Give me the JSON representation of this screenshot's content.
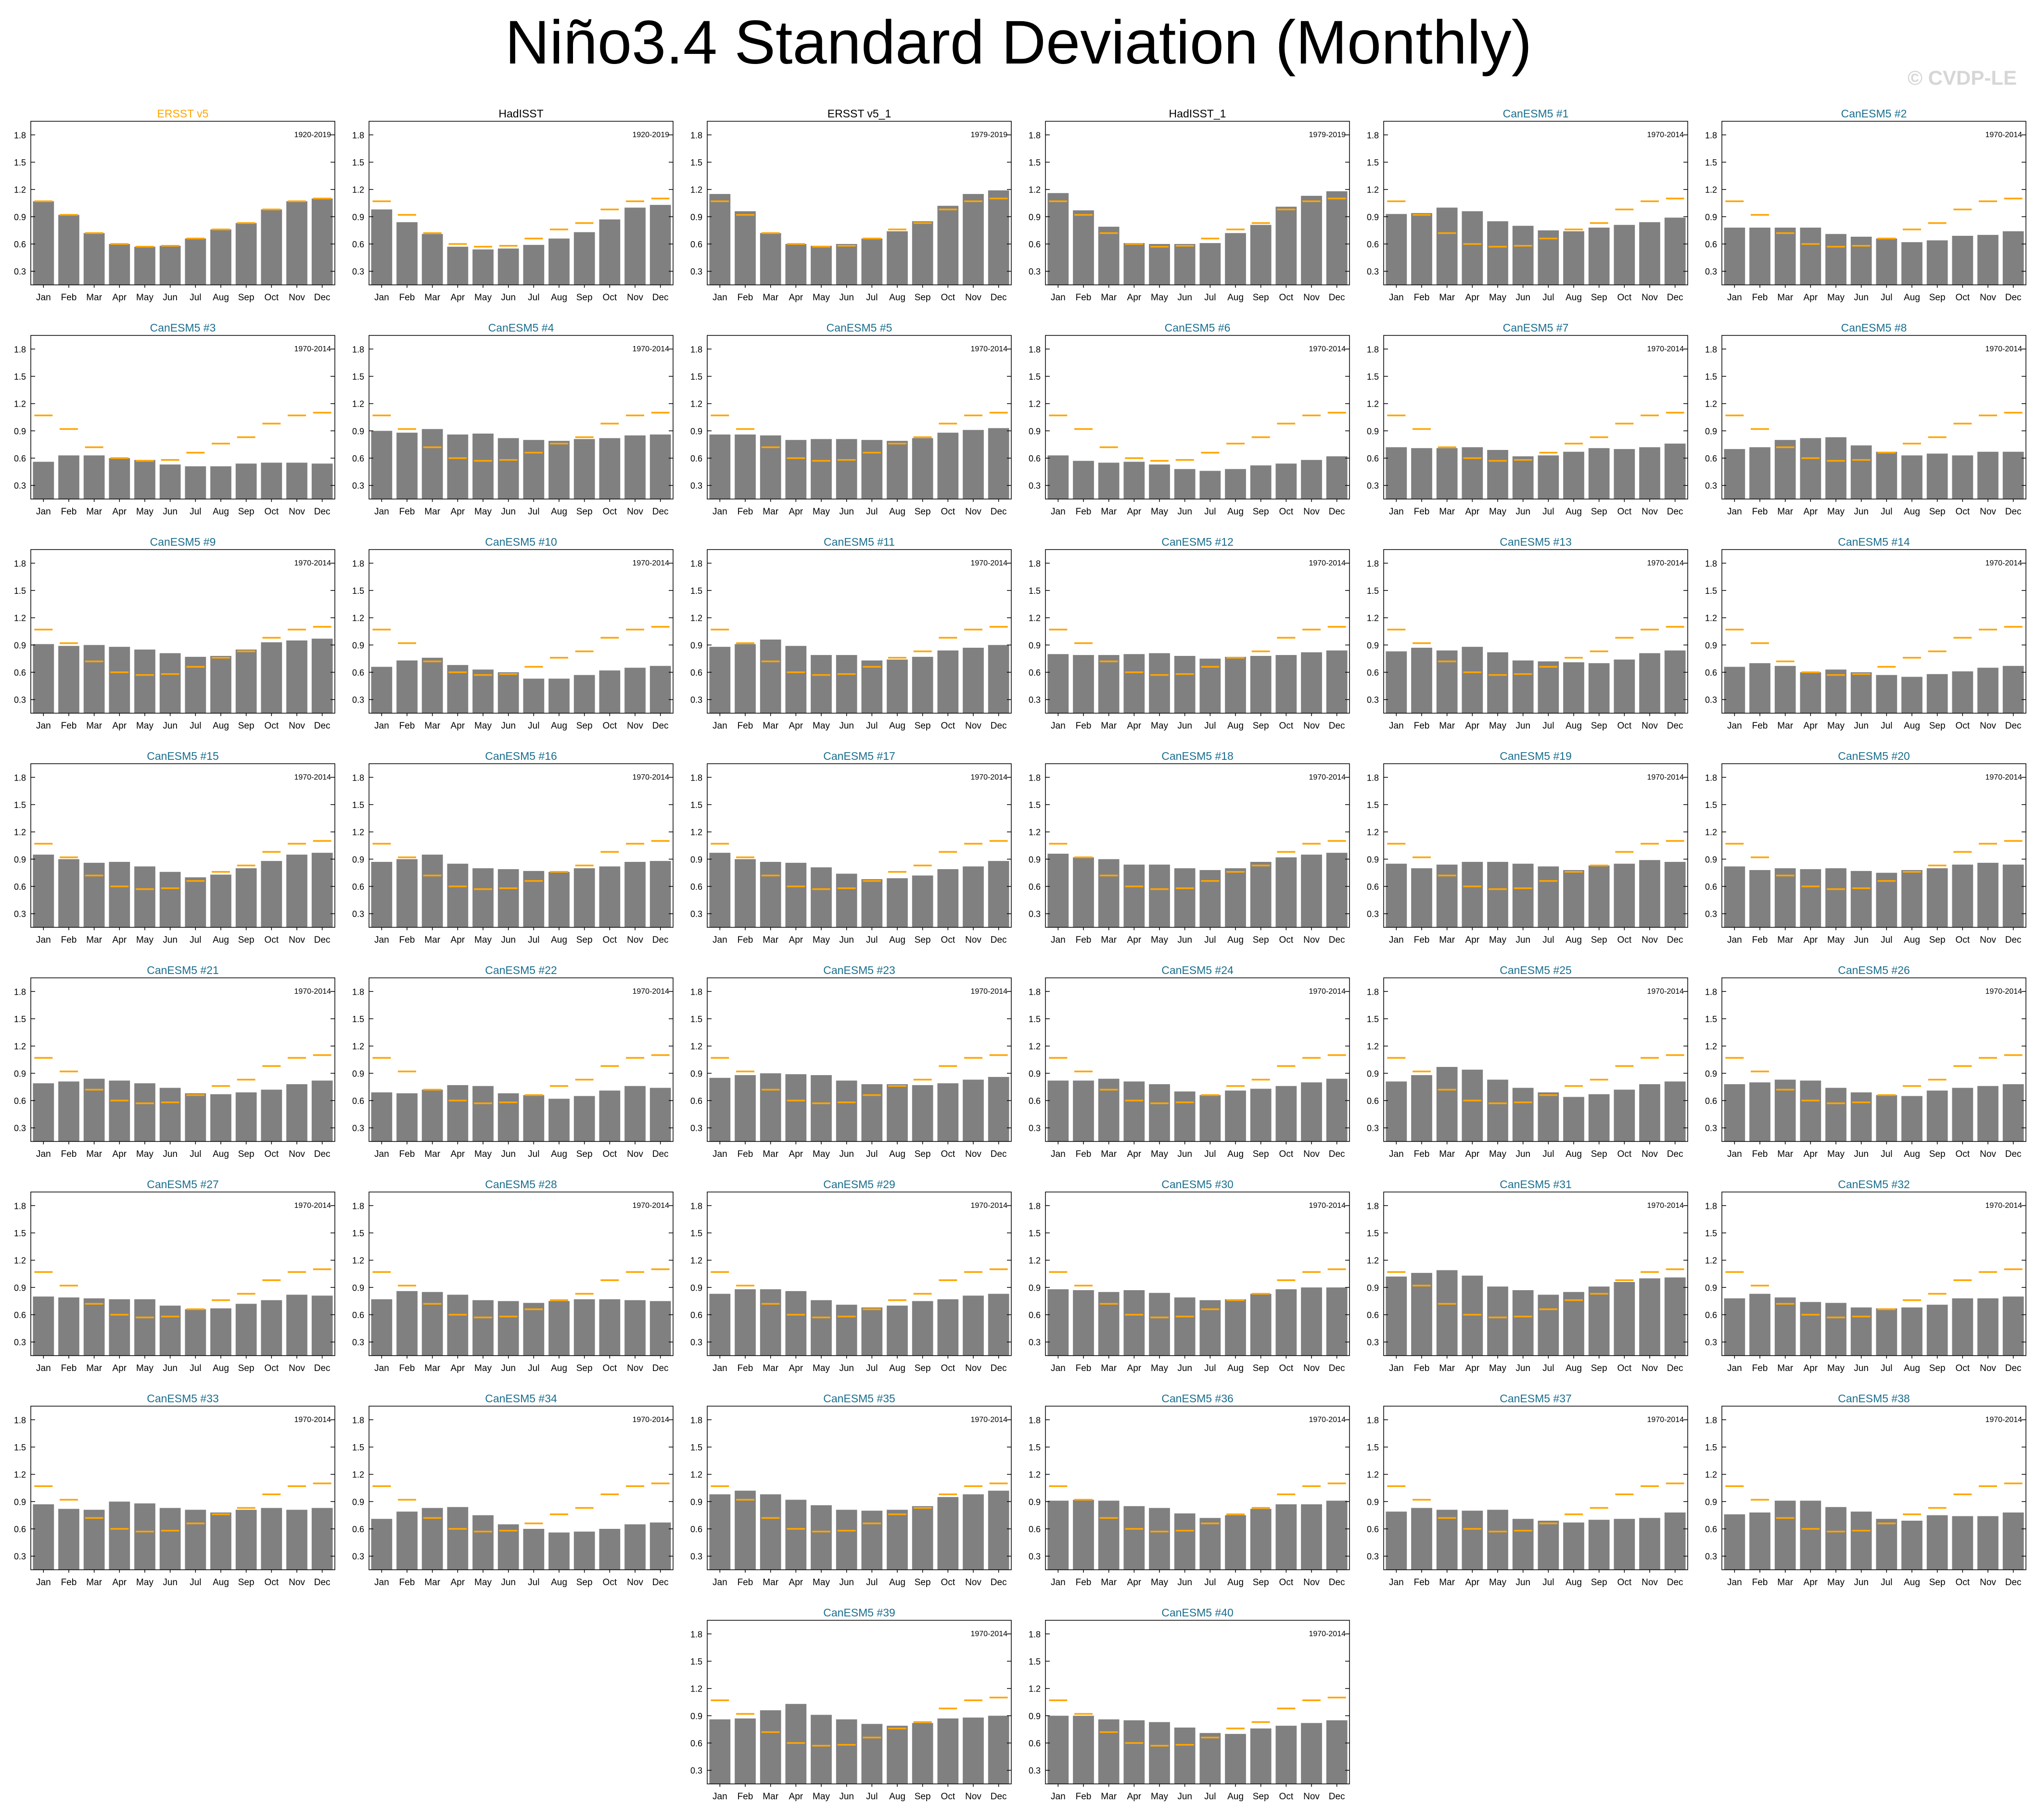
{
  "title": "Niño3.4 Standard Deviation (Monthly)",
  "watermark": "© CVDP-LE",
  "colors": {
    "bar": "#808080",
    "obs_line": "#FFA500",
    "obs_title": "#FFA500",
    "model_title": "#1a6e8e",
    "frame": "#000000"
  },
  "chart_data": {
    "type": "bar",
    "months": [
      "Jan",
      "Feb",
      "Mar",
      "Apr",
      "May",
      "Jun",
      "Jul",
      "Aug",
      "Sep",
      "Oct",
      "Nov",
      "Dec"
    ],
    "ylim": [
      0.15,
      1.95
    ],
    "yticks": [
      "0.3",
      "0.6",
      "0.9",
      "1.2",
      "1.5",
      "1.8"
    ],
    "obs_reference": [
      1.07,
      0.92,
      0.72,
      0.6,
      0.57,
      0.58,
      0.66,
      0.76,
      0.83,
      0.98,
      1.07,
      1.1
    ],
    "panels": [
      {
        "title": "ERSST v5",
        "kind": "obs-ref",
        "period": "1920-2019",
        "values": [
          1.07,
          0.92,
          0.72,
          0.6,
          0.57,
          0.58,
          0.66,
          0.76,
          0.83,
          0.98,
          1.07,
          1.1
        ]
      },
      {
        "title": "HadISST",
        "kind": "obs",
        "period": "1920-2019",
        "values": [
          0.98,
          0.84,
          0.71,
          0.57,
          0.54,
          0.55,
          0.59,
          0.66,
          0.73,
          0.87,
          1.0,
          1.03
        ]
      },
      {
        "title": "ERSST v5_1",
        "kind": "obs",
        "period": "1979-2019",
        "values": [
          1.15,
          0.96,
          0.72,
          0.6,
          0.58,
          0.6,
          0.66,
          0.74,
          0.85,
          1.02,
          1.15,
          1.19
        ]
      },
      {
        "title": "HadISST_1",
        "kind": "obs",
        "period": "1979-2019",
        "values": [
          1.16,
          0.97,
          0.79,
          0.61,
          0.6,
          0.6,
          0.61,
          0.72,
          0.81,
          1.01,
          1.13,
          1.18
        ]
      },
      {
        "title": "CanESM5 #1",
        "kind": "model",
        "period": "1970-2014",
        "values": [
          0.93,
          0.94,
          1.0,
          0.96,
          0.85,
          0.8,
          0.75,
          0.74,
          0.78,
          0.81,
          0.84,
          0.89
        ]
      },
      {
        "title": "CanESM5 #2",
        "kind": "model",
        "period": "1970-2014",
        "values": [
          0.78,
          0.78,
          0.78,
          0.78,
          0.71,
          0.68,
          0.66,
          0.62,
          0.64,
          0.69,
          0.7,
          0.74
        ]
      },
      {
        "title": "CanESM5 #3",
        "kind": "model",
        "period": "1970-2014",
        "values": [
          0.56,
          0.63,
          0.63,
          0.6,
          0.58,
          0.53,
          0.51,
          0.51,
          0.54,
          0.55,
          0.55,
          0.54
        ]
      },
      {
        "title": "CanESM5 #4",
        "kind": "model",
        "period": "1970-2014",
        "values": [
          0.9,
          0.88,
          0.92,
          0.86,
          0.87,
          0.82,
          0.8,
          0.79,
          0.81,
          0.82,
          0.85,
          0.86
        ]
      },
      {
        "title": "CanESM5 #5",
        "kind": "model",
        "period": "1970-2014",
        "values": [
          0.86,
          0.86,
          0.85,
          0.8,
          0.81,
          0.81,
          0.8,
          0.79,
          0.82,
          0.88,
          0.91,
          0.93
        ]
      },
      {
        "title": "CanESM5 #6",
        "kind": "model",
        "period": "1970-2014",
        "values": [
          0.63,
          0.57,
          0.55,
          0.56,
          0.53,
          0.48,
          0.46,
          0.48,
          0.52,
          0.54,
          0.58,
          0.62
        ]
      },
      {
        "title": "CanESM5 #7",
        "kind": "model",
        "period": "1970-2014",
        "values": [
          0.72,
          0.71,
          0.71,
          0.72,
          0.69,
          0.62,
          0.63,
          0.67,
          0.71,
          0.7,
          0.72,
          0.76
        ]
      },
      {
        "title": "CanESM5 #8",
        "kind": "model",
        "period": "1970-2014",
        "values": [
          0.7,
          0.72,
          0.8,
          0.82,
          0.83,
          0.74,
          0.67,
          0.63,
          0.65,
          0.63,
          0.67,
          0.67
        ]
      },
      {
        "title": "CanESM5 #9",
        "kind": "model",
        "period": "1970-2014",
        "values": [
          0.91,
          0.89,
          0.9,
          0.88,
          0.85,
          0.81,
          0.77,
          0.78,
          0.85,
          0.93,
          0.95,
          0.97
        ]
      },
      {
        "title": "CanESM5 #10",
        "kind": "model",
        "period": "1970-2014",
        "values": [
          0.66,
          0.73,
          0.76,
          0.68,
          0.63,
          0.6,
          0.53,
          0.53,
          0.57,
          0.62,
          0.65,
          0.67
        ]
      },
      {
        "title": "CanESM5 #11",
        "kind": "model",
        "period": "1970-2014",
        "values": [
          0.88,
          0.91,
          0.96,
          0.89,
          0.79,
          0.79,
          0.73,
          0.74,
          0.77,
          0.84,
          0.87,
          0.9
        ]
      },
      {
        "title": "CanESM5 #12",
        "kind": "model",
        "period": "1970-2014",
        "values": [
          0.8,
          0.79,
          0.79,
          0.8,
          0.81,
          0.78,
          0.75,
          0.77,
          0.78,
          0.79,
          0.82,
          0.84
        ]
      },
      {
        "title": "CanESM5 #13",
        "kind": "model",
        "period": "1970-2014",
        "values": [
          0.83,
          0.87,
          0.84,
          0.88,
          0.82,
          0.73,
          0.72,
          0.71,
          0.7,
          0.74,
          0.81,
          0.84
        ]
      },
      {
        "title": "CanESM5 #14",
        "kind": "model",
        "period": "1970-2014",
        "values": [
          0.66,
          0.7,
          0.67,
          0.6,
          0.63,
          0.6,
          0.57,
          0.55,
          0.58,
          0.61,
          0.65,
          0.67
        ]
      },
      {
        "title": "CanESM5 #15",
        "kind": "model",
        "period": "1970-2014",
        "values": [
          0.95,
          0.9,
          0.86,
          0.87,
          0.82,
          0.76,
          0.7,
          0.73,
          0.8,
          0.88,
          0.95,
          0.97
        ]
      },
      {
        "title": "CanESM5 #16",
        "kind": "model",
        "period": "1970-2014",
        "values": [
          0.87,
          0.9,
          0.95,
          0.85,
          0.8,
          0.79,
          0.77,
          0.76,
          0.8,
          0.82,
          0.87,
          0.88
        ]
      },
      {
        "title": "CanESM5 #17",
        "kind": "model",
        "period": "1970-2014",
        "values": [
          0.97,
          0.9,
          0.87,
          0.86,
          0.81,
          0.74,
          0.68,
          0.69,
          0.72,
          0.79,
          0.82,
          0.88
        ]
      },
      {
        "title": "CanESM5 #18",
        "kind": "model",
        "period": "1970-2014",
        "values": [
          0.96,
          0.92,
          0.9,
          0.84,
          0.84,
          0.8,
          0.78,
          0.8,
          0.87,
          0.92,
          0.95,
          0.97
        ]
      },
      {
        "title": "CanESM5 #19",
        "kind": "model",
        "period": "1970-2014",
        "values": [
          0.85,
          0.8,
          0.84,
          0.87,
          0.87,
          0.85,
          0.82,
          0.78,
          0.83,
          0.85,
          0.89,
          0.87
        ]
      },
      {
        "title": "CanESM5 #20",
        "kind": "model",
        "period": "1970-2014",
        "values": [
          0.82,
          0.78,
          0.8,
          0.79,
          0.8,
          0.77,
          0.75,
          0.78,
          0.8,
          0.84,
          0.86,
          0.84
        ]
      },
      {
        "title": "CanESM5 #21",
        "kind": "model",
        "period": "1970-2014",
        "values": [
          0.79,
          0.81,
          0.84,
          0.82,
          0.79,
          0.74,
          0.68,
          0.67,
          0.69,
          0.72,
          0.78,
          0.82
        ]
      },
      {
        "title": "CanESM5 #22",
        "kind": "model",
        "period": "1970-2014",
        "values": [
          0.69,
          0.68,
          0.72,
          0.77,
          0.76,
          0.68,
          0.66,
          0.62,
          0.65,
          0.71,
          0.76,
          0.74
        ]
      },
      {
        "title": "CanESM5 #23",
        "kind": "model",
        "period": "1970-2014",
        "values": [
          0.85,
          0.88,
          0.9,
          0.89,
          0.88,
          0.82,
          0.78,
          0.78,
          0.77,
          0.79,
          0.83,
          0.86
        ]
      },
      {
        "title": "CanESM5 #24",
        "kind": "model",
        "period": "1970-2014",
        "values": [
          0.82,
          0.82,
          0.84,
          0.81,
          0.78,
          0.7,
          0.66,
          0.71,
          0.73,
          0.76,
          0.8,
          0.84
        ]
      },
      {
        "title": "CanESM5 #25",
        "kind": "model",
        "period": "1970-2014",
        "values": [
          0.81,
          0.88,
          0.97,
          0.94,
          0.83,
          0.74,
          0.69,
          0.64,
          0.67,
          0.72,
          0.78,
          0.81
        ]
      },
      {
        "title": "CanESM5 #26",
        "kind": "model",
        "period": "1970-2014",
        "values": [
          0.78,
          0.8,
          0.83,
          0.82,
          0.74,
          0.69,
          0.66,
          0.65,
          0.71,
          0.74,
          0.76,
          0.78
        ]
      },
      {
        "title": "CanESM5 #27",
        "kind": "model",
        "period": "1970-2014",
        "values": [
          0.8,
          0.79,
          0.78,
          0.77,
          0.77,
          0.7,
          0.66,
          0.67,
          0.72,
          0.76,
          0.82,
          0.81
        ]
      },
      {
        "title": "CanESM5 #28",
        "kind": "model",
        "period": "1970-2014",
        "values": [
          0.77,
          0.86,
          0.85,
          0.82,
          0.76,
          0.75,
          0.73,
          0.75,
          0.77,
          0.77,
          0.76,
          0.75
        ]
      },
      {
        "title": "CanESM5 #29",
        "kind": "model",
        "period": "1970-2014",
        "values": [
          0.83,
          0.88,
          0.88,
          0.86,
          0.76,
          0.71,
          0.68,
          0.7,
          0.75,
          0.77,
          0.81,
          0.83
        ]
      },
      {
        "title": "CanESM5 #30",
        "kind": "model",
        "period": "1970-2014",
        "values": [
          0.88,
          0.87,
          0.85,
          0.87,
          0.84,
          0.79,
          0.76,
          0.77,
          0.83,
          0.88,
          0.9,
          0.9
        ]
      },
      {
        "title": "CanESM5 #31",
        "kind": "model",
        "period": "1970-2014",
        "values": [
          1.02,
          1.06,
          1.09,
          1.03,
          0.91,
          0.87,
          0.82,
          0.85,
          0.91,
          0.96,
          1.0,
          1.01
        ]
      },
      {
        "title": "CanESM5 #32",
        "kind": "model",
        "period": "1970-2014",
        "values": [
          0.78,
          0.83,
          0.79,
          0.74,
          0.73,
          0.68,
          0.67,
          0.68,
          0.71,
          0.78,
          0.78,
          0.8
        ]
      },
      {
        "title": "CanESM5 #33",
        "kind": "model",
        "period": "1970-2014",
        "values": [
          0.87,
          0.82,
          0.81,
          0.9,
          0.88,
          0.83,
          0.81,
          0.78,
          0.81,
          0.83,
          0.81,
          0.83
        ]
      },
      {
        "title": "CanESM5 #34",
        "kind": "model",
        "period": "1970-2014",
        "values": [
          0.71,
          0.79,
          0.83,
          0.84,
          0.75,
          0.65,
          0.6,
          0.56,
          0.57,
          0.6,
          0.65,
          0.67
        ]
      },
      {
        "title": "CanESM5 #35",
        "kind": "model",
        "period": "1970-2014",
        "values": [
          0.98,
          1.02,
          0.98,
          0.92,
          0.86,
          0.81,
          0.8,
          0.81,
          0.85,
          0.95,
          0.98,
          1.02
        ]
      },
      {
        "title": "CanESM5 #36",
        "kind": "model",
        "period": "1970-2014",
        "values": [
          0.91,
          0.92,
          0.91,
          0.85,
          0.83,
          0.77,
          0.72,
          0.75,
          0.82,
          0.87,
          0.87,
          0.91
        ]
      },
      {
        "title": "CanESM5 #37",
        "kind": "model",
        "period": "1970-2014",
        "values": [
          0.79,
          0.83,
          0.81,
          0.8,
          0.81,
          0.71,
          0.69,
          0.67,
          0.7,
          0.71,
          0.72,
          0.78
        ]
      },
      {
        "title": "CanESM5 #38",
        "kind": "model",
        "period": "1970-2014",
        "values": [
          0.76,
          0.78,
          0.91,
          0.91,
          0.84,
          0.79,
          0.71,
          0.69,
          0.75,
          0.74,
          0.74,
          0.78
        ]
      },
      {
        "title": "CanESM5 #39",
        "kind": "model",
        "period": "1970-2014",
        "values": [
          0.86,
          0.87,
          0.96,
          1.03,
          0.91,
          0.86,
          0.81,
          0.79,
          0.82,
          0.87,
          0.88,
          0.9
        ]
      },
      {
        "title": "CanESM5 #40",
        "kind": "model",
        "period": "1970-2014",
        "values": [
          0.9,
          0.9,
          0.86,
          0.85,
          0.83,
          0.77,
          0.71,
          0.7,
          0.76,
          0.79,
          0.82,
          0.85
        ]
      }
    ]
  }
}
